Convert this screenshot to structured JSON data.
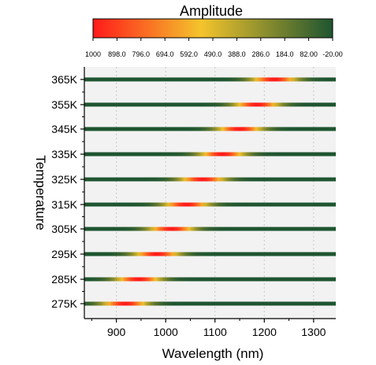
{
  "chart_data": {
    "type": "heatmap",
    "colorbar": {
      "title": "Amplitude",
      "tick_labels": [
        "1000",
        "898.0",
        "796.0",
        "694.0",
        "592.0",
        "490.0",
        "388.0",
        "286.0",
        "184.0",
        "82.00",
        "-20.00"
      ],
      "range": [
        1000,
        -20
      ],
      "colors": [
        "#ff1a1a",
        "#f4c42c",
        "#1e5530"
      ]
    },
    "xlabel": "Wavelength (nm)",
    "ylabel": "Temperature",
    "xlim": [
      835,
      1345
    ],
    "x_ticks": [
      900,
      1000,
      1100,
      1200,
      1300
    ],
    "x_tick_labels": [
      "900",
      "1000",
      "1100",
      "1200",
      "1300"
    ],
    "grid": true,
    "rows": [
      {
        "label": "365K",
        "peak_nm": 1220,
        "fwhm_nm": 75
      },
      {
        "label": "355K",
        "peak_nm": 1185,
        "fwhm_nm": 75
      },
      {
        "label": "345K",
        "peak_nm": 1150,
        "fwhm_nm": 75
      },
      {
        "label": "335K",
        "peak_nm": 1115,
        "fwhm_nm": 75
      },
      {
        "label": "325K",
        "peak_nm": 1075,
        "fwhm_nm": 75
      },
      {
        "label": "315K",
        "peak_nm": 1042,
        "fwhm_nm": 75
      },
      {
        "label": "305K",
        "peak_nm": 1012,
        "fwhm_nm": 75
      },
      {
        "label": "295K",
        "peak_nm": 982,
        "fwhm_nm": 75
      },
      {
        "label": "285K",
        "peak_nm": 945,
        "fwhm_nm": 75
      },
      {
        "label": "275K",
        "peak_nm": 918,
        "fwhm_nm": 75
      }
    ]
  }
}
